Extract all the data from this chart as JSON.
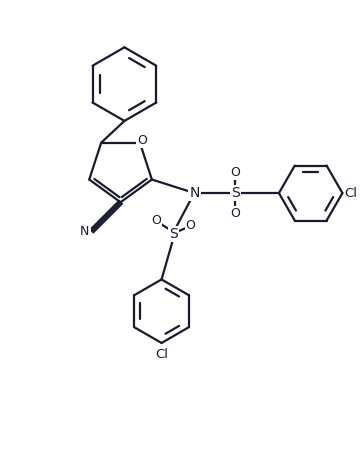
{
  "bg_color": "#ffffff",
  "line_color": "#1a1a2e",
  "line_width": 1.6,
  "figsize": [
    3.6,
    4.51
  ],
  "dpi": 100,
  "xlim": [
    0,
    9
  ],
  "ylim": [
    0,
    11.5
  ]
}
